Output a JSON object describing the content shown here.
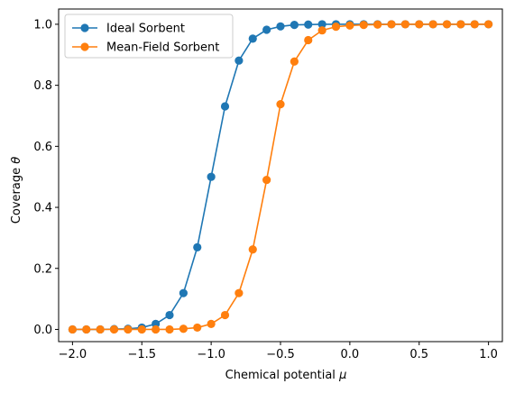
{
  "chart_data": {
    "type": "line",
    "title": "",
    "xlabel": "Chemical potential",
    "xlabel_symbol": "μ",
    "ylabel": "Coverage",
    "ylabel_symbol": "θ",
    "xlim": [
      -2.1,
      1.1
    ],
    "ylim": [
      -0.04,
      1.05
    ],
    "xticks": [
      -2.0,
      -1.5,
      -1.0,
      -0.5,
      0.0,
      0.5,
      1.0
    ],
    "xtick_labels": [
      "−2.0",
      "−1.5",
      "−1.0",
      "−0.5",
      "0.0",
      "0.5",
      "1.0"
    ],
    "yticks": [
      0.0,
      0.2,
      0.4,
      0.6,
      0.8,
      1.0
    ],
    "ytick_labels": [
      "0.0",
      "0.2",
      "0.4",
      "0.6",
      "0.8",
      "1.0"
    ],
    "grid": false,
    "legend_position": "top-left",
    "x": [
      -2.0,
      -1.9,
      -1.8,
      -1.7,
      -1.6,
      -1.5,
      -1.4,
      -1.3,
      -1.2,
      -1.1,
      -1.0,
      -0.9,
      -0.8,
      -0.7,
      -0.6,
      -0.5,
      -0.4,
      -0.3,
      -0.2,
      -0.1,
      0.0,
      0.1,
      0.2,
      0.3,
      0.4,
      0.5,
      0.6,
      0.7,
      0.8,
      0.9,
      1.0
    ],
    "series": [
      {
        "name": "Ideal Sorbent",
        "color": "#1f77b4",
        "marker": "circle",
        "values": [
          0.0,
          0.0,
          0.0,
          0.001,
          0.002,
          0.006,
          0.018,
          0.047,
          0.119,
          0.269,
          0.5,
          0.731,
          0.881,
          0.953,
          0.982,
          0.993,
          0.998,
          0.999,
          1.0,
          1.0,
          1.0,
          1.0,
          1.0,
          1.0,
          1.0,
          1.0,
          1.0,
          1.0,
          1.0,
          1.0,
          1.0
        ]
      },
      {
        "name": "Mean-Field Sorbent",
        "color": "#ff7f0e",
        "marker": "circle",
        "values": [
          0.0,
          0.0,
          0.0,
          0.0,
          0.0,
          0.0,
          0.0,
          0.0,
          0.002,
          0.006,
          0.018,
          0.047,
          0.119,
          0.262,
          0.49,
          0.738,
          0.878,
          0.948,
          0.98,
          0.992,
          0.996,
          0.998,
          0.999,
          1.0,
          1.0,
          1.0,
          1.0,
          1.0,
          1.0,
          1.0,
          1.0
        ]
      }
    ]
  }
}
